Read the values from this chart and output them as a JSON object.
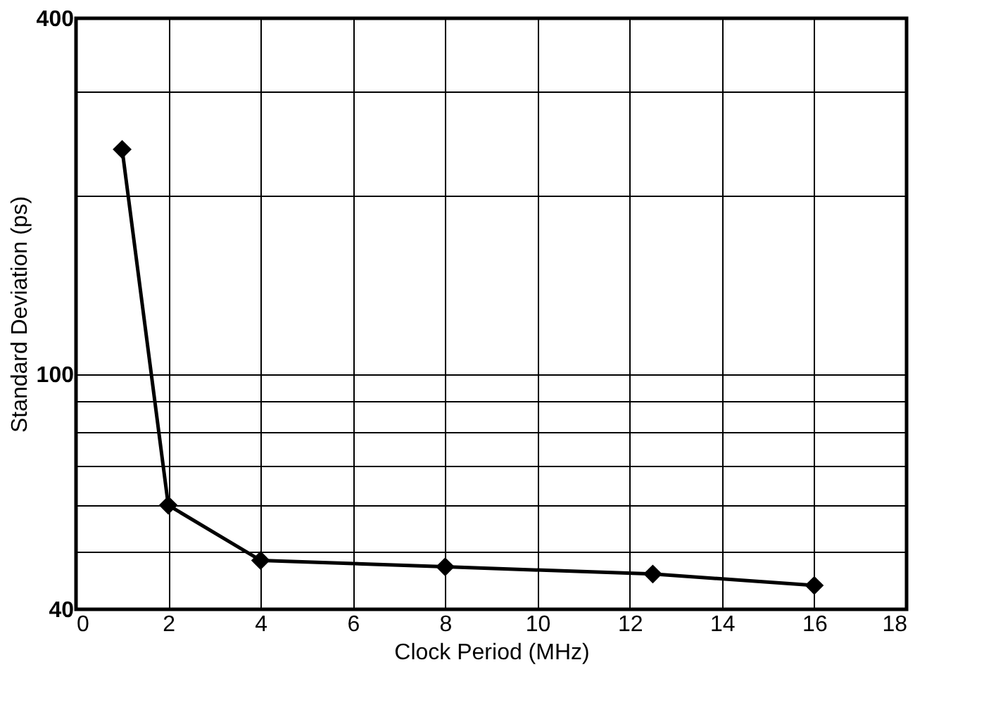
{
  "chart_data": {
    "type": "line",
    "xlabel": "Clock Period (MHz)",
    "ylabel": "Standard Deviation (ps)",
    "x": [
      1,
      2,
      4,
      8,
      12.5,
      16
    ],
    "series": [
      {
        "color": "#000000",
        "values": [
          240,
          60,
          48.4,
          47.2,
          45.9,
          43.9
        ]
      }
    ],
    "xlim": [
      0,
      18
    ],
    "xticks": [
      0,
      2,
      4,
      6,
      8,
      10,
      12,
      14,
      16,
      18
    ],
    "ylim": [
      40,
      400
    ],
    "yticks": [
      40,
      {
        "value": 50,
        "label": null
      },
      {
        "value": 60,
        "label": null
      },
      {
        "value": 70,
        "label": null
      },
      {
        "value": 80,
        "label": null
      },
      {
        "value": 90,
        "label": null
      },
      100,
      {
        "value": 200,
        "label": null
      },
      {
        "value": 300,
        "label": null
      },
      400
    ],
    "log": "y",
    "grid": true,
    "marker": "diamond",
    "line_style": "solid"
  }
}
